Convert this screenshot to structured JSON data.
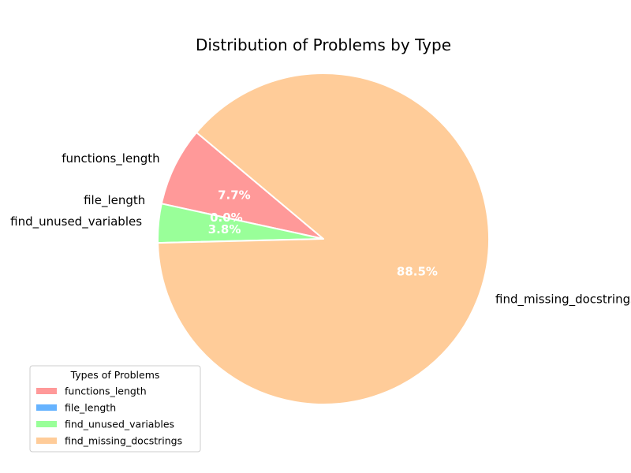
{
  "chart_data": {
    "type": "pie",
    "title": "Distribution of Problems by Type",
    "categories": [
      "functions_length",
      "file_length",
      "find_unused_variables",
      "find_missing_docstrings"
    ],
    "values": [
      7.7,
      0.0,
      3.8,
      88.5
    ],
    "percent_labels": [
      "7.7%",
      "0.0%",
      "3.8%",
      "88.5%"
    ],
    "colors": [
      "#ff9999",
      "#66b3ff",
      "#99ff99",
      "#ffcc99"
    ],
    "legend": {
      "title": "Types of Problems",
      "placement": "lower-left",
      "entries": [
        "functions_length",
        "file_length",
        "find_unused_variables",
        "find_missing_docstrings"
      ]
    },
    "wedge_edge_color": "#ffffff"
  }
}
